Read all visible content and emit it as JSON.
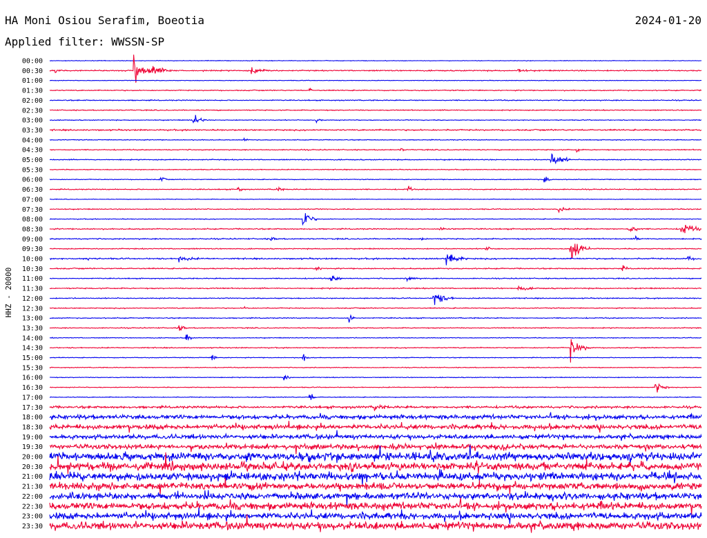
{
  "header": {
    "station": "HA Moni Osiou Serafim, Boeotia",
    "date": "2024-01-20",
    "filter": "Applied filter: WWSSN-SP"
  },
  "chart_data": {
    "type": "line",
    "title": "HA Moni Osiou Serafim, Boeotia",
    "ylabel": "HHZ - 20000",
    "colors": {
      "odd": "#0000ee",
      "even": "#ee0033"
    },
    "rows": [
      "00:00",
      "00:30",
      "01:00",
      "01:30",
      "02:00",
      "02:30",
      "03:00",
      "03:30",
      "04:00",
      "04:30",
      "05:00",
      "05:30",
      "06:00",
      "06:30",
      "07:00",
      "07:30",
      "08:00",
      "08:30",
      "09:00",
      "09:30",
      "10:00",
      "10:30",
      "11:00",
      "11:30",
      "12:00",
      "12:30",
      "13:00",
      "13:30",
      "14:00",
      "14:30",
      "15:00",
      "15:30",
      "16:00",
      "16:30",
      "17:00",
      "17:30",
      "18:00",
      "18:30",
      "19:00",
      "19:30",
      "20:00",
      "20:30",
      "21:00",
      "21:30",
      "22:00",
      "22:30",
      "23:00",
      "23:30"
    ],
    "noise": [
      0.3,
      0.6,
      0.3,
      0.5,
      0.5,
      0.5,
      0.4,
      0.7,
      0.4,
      0.5,
      0.5,
      0.4,
      0.4,
      0.5,
      0.3,
      0.5,
      0.4,
      0.6,
      0.6,
      0.5,
      0.7,
      0.6,
      0.5,
      0.6,
      0.5,
      0.5,
      0.5,
      0.5,
      0.4,
      0.5,
      0.4,
      0.4,
      0.4,
      0.4,
      0.4,
      1.2,
      2.2,
      2.5,
      2.3,
      2.5,
      4.2,
      4.0,
      4.0,
      3.6,
      3.5,
      3.8,
      3.5,
      4.0
    ],
    "events": [
      {
        "row": 1,
        "t": 0.13,
        "a": 14,
        "d": 0.05
      },
      {
        "row": 1,
        "t": 0.16,
        "a": 4,
        "d": 0.03
      },
      {
        "row": 1,
        "t": 0.31,
        "a": 4,
        "d": 0.03
      },
      {
        "row": 1,
        "t": 0.72,
        "a": 3,
        "d": 0.02
      },
      {
        "row": 1,
        "t": 0.01,
        "a": 2,
        "d": 0.01
      },
      {
        "row": 3,
        "t": 0.4,
        "a": 2,
        "d": 0.005
      },
      {
        "row": 6,
        "t": 0.22,
        "a": 9,
        "d": 0.02
      },
      {
        "row": 6,
        "t": 0.41,
        "a": 3,
        "d": 0.01
      },
      {
        "row": 8,
        "t": 0.3,
        "a": 2,
        "d": 0.005
      },
      {
        "row": 9,
        "t": 0.54,
        "a": 2,
        "d": 0.005
      },
      {
        "row": 9,
        "t": 0.81,
        "a": 3,
        "d": 0.005
      },
      {
        "row": 10,
        "t": 0.77,
        "a": 10,
        "d": 0.03
      },
      {
        "row": 12,
        "t": 0.17,
        "a": 5,
        "d": 0.01
      },
      {
        "row": 12,
        "t": 0.76,
        "a": 5,
        "d": 0.01
      },
      {
        "row": 13,
        "t": 0.29,
        "a": 3,
        "d": 0.01
      },
      {
        "row": 13,
        "t": 0.35,
        "a": 3,
        "d": 0.01
      },
      {
        "row": 13,
        "t": 0.55,
        "a": 4,
        "d": 0.01
      },
      {
        "row": 15,
        "t": 0.78,
        "a": 3,
        "d": 0.02
      },
      {
        "row": 16,
        "t": 0.39,
        "a": 13,
        "d": 0.02
      },
      {
        "row": 17,
        "t": 0.89,
        "a": 5,
        "d": 0.02
      },
      {
        "row": 17,
        "t": 0.97,
        "a": 7,
        "d": 0.04
      },
      {
        "row": 17,
        "t": 0.6,
        "a": 2,
        "d": 0.03
      },
      {
        "row": 18,
        "t": 0.34,
        "a": 3,
        "d": 0.01
      },
      {
        "row": 18,
        "t": 0.57,
        "a": 2,
        "d": 0.01
      },
      {
        "row": 18,
        "t": 0.9,
        "a": 2,
        "d": 0.01
      },
      {
        "row": 19,
        "t": 0.8,
        "a": 18,
        "d": 0.03
      },
      {
        "row": 19,
        "t": 0.67,
        "a": 2,
        "d": 0.02
      },
      {
        "row": 20,
        "t": 0.61,
        "a": 10,
        "d": 0.03
      },
      {
        "row": 20,
        "t": 0.06,
        "a": 2,
        "d": 0.01
      },
      {
        "row": 20,
        "t": 0.2,
        "a": 3,
        "d": 0.03
      },
      {
        "row": 20,
        "t": 0.98,
        "a": 3,
        "d": 0.01
      },
      {
        "row": 21,
        "t": 0.41,
        "a": 3,
        "d": 0.01
      },
      {
        "row": 21,
        "t": 0.88,
        "a": 3,
        "d": 0.01
      },
      {
        "row": 22,
        "t": 0.43,
        "a": 6,
        "d": 0.02
      },
      {
        "row": 22,
        "t": 0.55,
        "a": 3,
        "d": 0.02
      },
      {
        "row": 23,
        "t": 0.72,
        "a": 3,
        "d": 0.03
      },
      {
        "row": 24,
        "t": 0.59,
        "a": 10,
        "d": 0.03
      },
      {
        "row": 25,
        "t": 0.3,
        "a": 2,
        "d": 0.01
      },
      {
        "row": 26,
        "t": 0.46,
        "a": 7,
        "d": 0.01
      },
      {
        "row": 27,
        "t": 0.2,
        "a": 6,
        "d": 0.01
      },
      {
        "row": 28,
        "t": 0.21,
        "a": 7,
        "d": 0.01
      },
      {
        "row": 29,
        "t": 0.8,
        "a": 12,
        "d": 0.03
      },
      {
        "row": 30,
        "t": 0.25,
        "a": 4,
        "d": 0.01
      },
      {
        "row": 30,
        "t": 0.39,
        "a": 5,
        "d": 0.01
      },
      {
        "row": 32,
        "t": 0.36,
        "a": 5,
        "d": 0.01
      },
      {
        "row": 33,
        "t": 0.93,
        "a": 8,
        "d": 0.02
      },
      {
        "row": 34,
        "t": 0.4,
        "a": 6,
        "d": 0.01
      },
      {
        "row": 35,
        "t": 0.5,
        "a": 3,
        "d": 0.02
      }
    ]
  }
}
